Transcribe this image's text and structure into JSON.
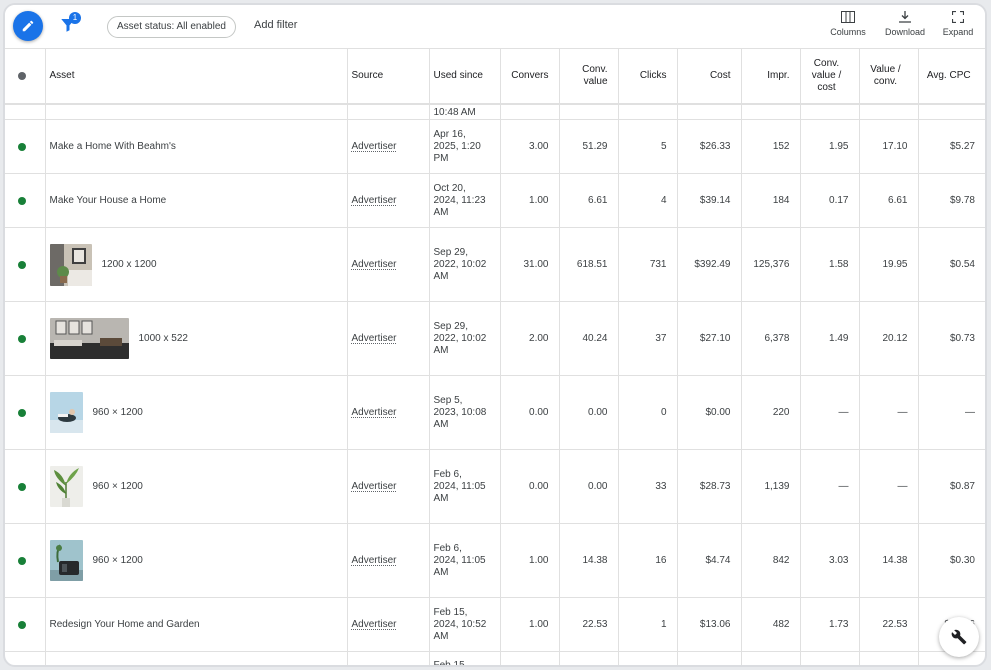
{
  "toolbar": {
    "filter_count": "1",
    "chip_label": "Asset status: All enabled",
    "add_filter": "Add filter",
    "columns": "Columns",
    "download": "Download",
    "expand": "Expand"
  },
  "columns": [
    "Asset",
    "Source",
    "Used since",
    "Convers",
    "Conv. value",
    "Clicks",
    "Cost",
    "Impr.",
    "Conv. value / cost",
    "Value / conv.",
    "Avg. CPC"
  ],
  "top_partial": {
    "used_since": "10:48 AM"
  },
  "rows": [
    {
      "asset": "Make a Home With Beahm's",
      "source": "Advertiser",
      "used_since": "Apr 16, 2025, 1:20 PM",
      "conv": "3.00",
      "conv_value": "51.29",
      "clicks": "5",
      "cost": "$26.33",
      "impr": "152",
      "cv_cost": "1.95",
      "value_conv": "17.10",
      "avg_cpc": "$5.27"
    },
    {
      "asset": "Make Your House a Home",
      "source": "Advertiser",
      "used_since": "Oct 20, 2024, 11:23 AM",
      "conv": "1.00",
      "conv_value": "6.61",
      "clicks": "4",
      "cost": "$39.14",
      "impr": "184",
      "cv_cost": "0.17",
      "value_conv": "6.61",
      "avg_cpc": "$9.78"
    },
    {
      "asset": "1200 x 1200",
      "source": "Advertiser",
      "used_since": "Sep 29, 2022, 10:02 AM",
      "conv": "31.00",
      "conv_value": "618.51",
      "clicks": "731",
      "cost": "$392.49",
      "impr": "125,376",
      "cv_cost": "1.58",
      "value_conv": "19.95",
      "avg_cpc": "$0.54"
    },
    {
      "asset": "1000 x 522",
      "source": "Advertiser",
      "used_since": "Sep 29, 2022, 10:02 AM",
      "conv": "2.00",
      "conv_value": "40.24",
      "clicks": "37",
      "cost": "$27.10",
      "impr": "6,378",
      "cv_cost": "1.49",
      "value_conv": "20.12",
      "avg_cpc": "$0.73"
    },
    {
      "asset": "960 × 1200",
      "source": "Advertiser",
      "used_since": "Sep 5, 2023, 10:08 AM",
      "conv": "0.00",
      "conv_value": "0.00",
      "clicks": "0",
      "cost": "$0.00",
      "impr": "220",
      "cv_cost": "—",
      "value_conv": "—",
      "avg_cpc": "—"
    },
    {
      "asset": "960 × 1200",
      "source": "Advertiser",
      "used_since": "Feb 6, 2024, 11:05 AM",
      "conv": "0.00",
      "conv_value": "0.00",
      "clicks": "33",
      "cost": "$28.73",
      "impr": "1,139",
      "cv_cost": "—",
      "value_conv": "—",
      "avg_cpc": "$0.87"
    },
    {
      "asset": "960 × 1200",
      "source": "Advertiser",
      "used_since": "Feb 6, 2024, 11:05 AM",
      "conv": "1.00",
      "conv_value": "14.38",
      "clicks": "16",
      "cost": "$4.74",
      "impr": "842",
      "cv_cost": "3.03",
      "value_conv": "14.38",
      "avg_cpc": "$0.30"
    },
    {
      "asset": "Redesign Your Home and Garden",
      "source": "Advertiser",
      "used_since": "Feb 15, 2024, 10:52 AM",
      "conv": "1.00",
      "conv_value": "22.53",
      "clicks": "1",
      "cost": "$13.06",
      "impr": "482",
      "cv_cost": "1.73",
      "value_conv": "22.53",
      "avg_cpc": "$13.06"
    }
  ],
  "bottom_partial": {
    "used_since": "Feb 15,"
  },
  "colors": {
    "accent": "#1a73e8",
    "enabled_dot": "#188038",
    "header_dot": "#5f6368"
  }
}
